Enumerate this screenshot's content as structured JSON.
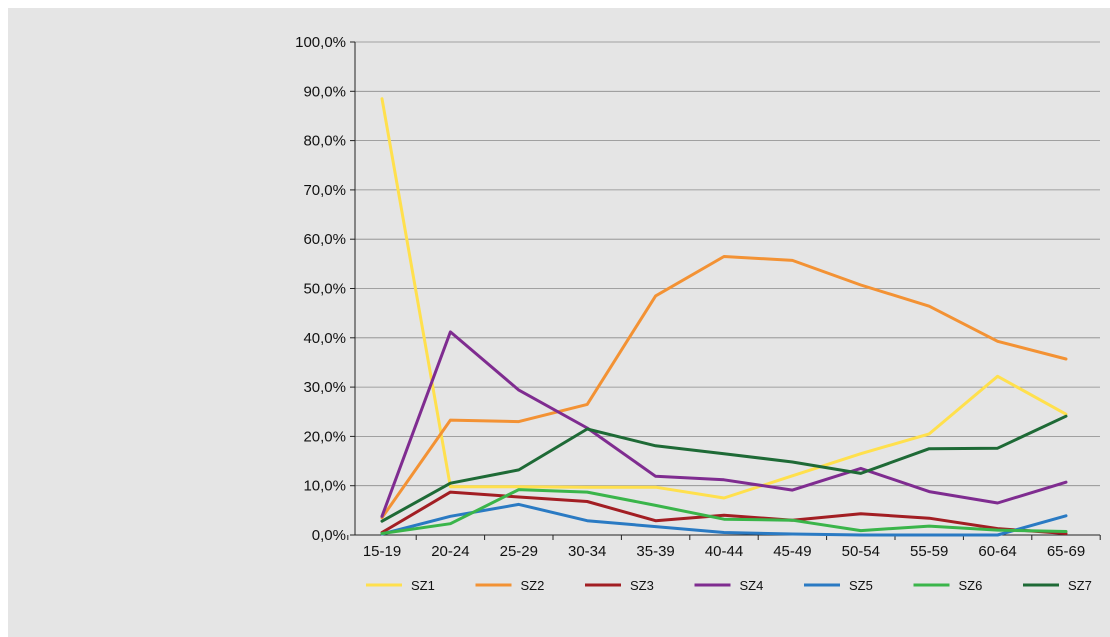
{
  "chart_data": {
    "type": "line",
    "title": "",
    "xlabel": "",
    "ylabel": "",
    "categories": [
      "15-19",
      "20-24",
      "25-29",
      "30-34",
      "35-39",
      "40-44",
      "45-49",
      "50-54",
      "55-59",
      "60-64",
      "65-69"
    ],
    "y_ticks": [
      "0,0%",
      "10,0%",
      "20,0%",
      "30,0%",
      "40,0%",
      "50,0%",
      "60,0%",
      "70,0%",
      "80,0%",
      "90,0%",
      "100,0%"
    ],
    "ylim": [
      0,
      100
    ],
    "grid": true,
    "legend_position": "bottom",
    "series": [
      {
        "name": "SZ1",
        "color": "#ffe04d",
        "values": [
          88.5,
          9.8,
          9.8,
          9.7,
          9.7,
          7.5,
          12.0,
          16.5,
          20.5,
          32.2,
          24.5
        ]
      },
      {
        "name": "SZ2",
        "color": "#f39234",
        "values": [
          3.5,
          23.3,
          23.0,
          26.5,
          48.5,
          56.5,
          55.7,
          50.7,
          46.4,
          39.3,
          35.7
        ]
      },
      {
        "name": "SZ3",
        "color": "#a21e23",
        "values": [
          0.5,
          8.7,
          7.7,
          6.8,
          2.9,
          4.0,
          3.0,
          4.3,
          3.4,
          1.3,
          0.3
        ]
      },
      {
        "name": "SZ4",
        "color": "#7f2c90",
        "values": [
          3.8,
          41.2,
          29.4,
          21.7,
          11.9,
          11.2,
          9.1,
          13.5,
          8.8,
          6.5,
          10.7
        ]
      },
      {
        "name": "SZ5",
        "color": "#2a7ac3",
        "values": [
          0.2,
          3.8,
          6.2,
          2.9,
          1.7,
          0.5,
          0.2,
          0.0,
          0.0,
          0.0,
          3.9
        ]
      },
      {
        "name": "SZ6",
        "color": "#3ab54a",
        "values": [
          0.3,
          2.3,
          9.2,
          8.7,
          6.0,
          3.2,
          3.0,
          0.9,
          1.8,
          1.0,
          0.7
        ]
      },
      {
        "name": "SZ7",
        "color": "#1e6a36",
        "values": [
          2.8,
          10.5,
          13.2,
          21.5,
          18.1,
          16.5,
          14.8,
          12.5,
          17.5,
          17.6,
          24.1
        ]
      }
    ]
  }
}
